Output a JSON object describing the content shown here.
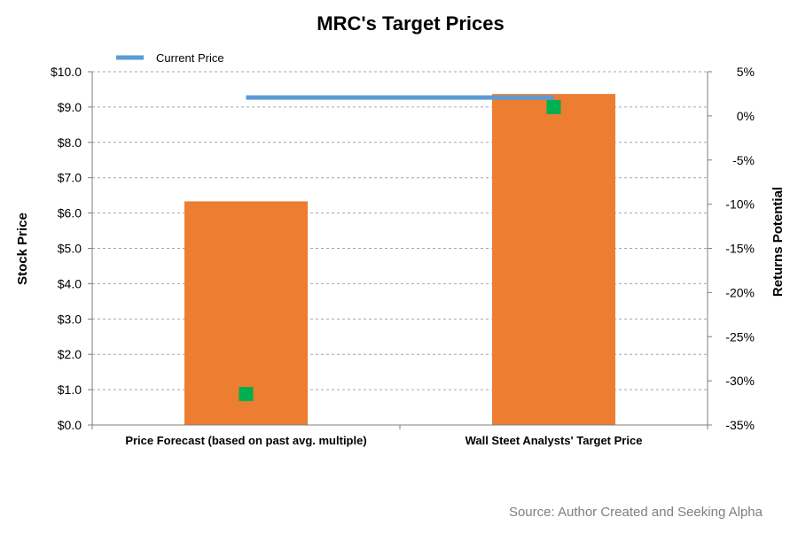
{
  "chart_data": {
    "type": "bar",
    "title": "MRC's Target Prices",
    "categories": [
      "Price Forecast (based on past avg. multiple)",
      "Wall Steet Analysts' Target Price"
    ],
    "series": [
      {
        "name": "Target Price",
        "kind": "bar",
        "axis": "left",
        "color": "#ed7d31",
        "values": [
          6.33,
          9.37
        ]
      },
      {
        "name": "Returns Potential",
        "kind": "marker",
        "axis": "right",
        "color": "#00b050",
        "values": [
          -31.5,
          1.0
        ]
      },
      {
        "name": "Current Price",
        "kind": "line",
        "axis": "left",
        "color": "#5b9bd5",
        "values": [
          9.27,
          9.27
        ]
      }
    ],
    "legend": {
      "placement": "top-left",
      "entries": [
        "Current Price"
      ]
    },
    "y_left": {
      "label": "Stock Price",
      "range": [
        0,
        10
      ],
      "ticks": [
        "$0.0",
        "$1.0",
        "$2.0",
        "$3.0",
        "$4.0",
        "$5.0",
        "$6.0",
        "$7.0",
        "$8.0",
        "$9.0",
        "$10.0"
      ]
    },
    "y_right": {
      "label": "Returns Potential",
      "range": [
        -35,
        5
      ],
      "ticks": [
        "-35%",
        "-30%",
        "-25%",
        "-20%",
        "-15%",
        "-10%",
        "-5%",
        "0%",
        "5%"
      ]
    },
    "grid": true,
    "source": "Source: Author Created and Seeking Alpha"
  }
}
